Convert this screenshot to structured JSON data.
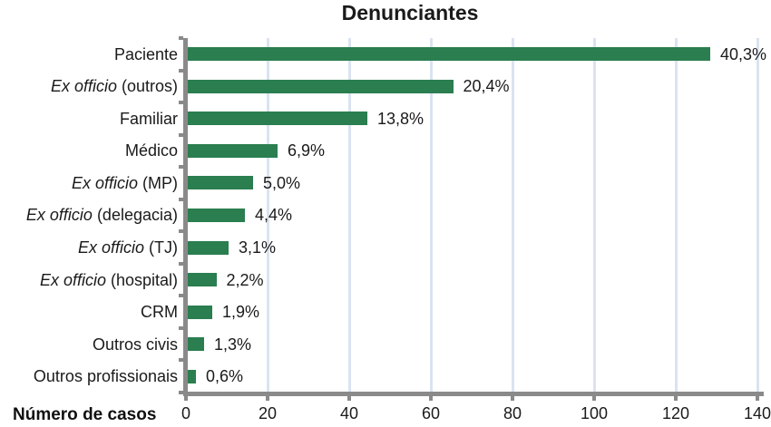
{
  "chart_data": {
    "type": "bar",
    "orientation": "horizontal",
    "title": "Denunciantes",
    "xlabel": "Número de casos",
    "xlim": [
      0,
      140
    ],
    "xticks": [
      0,
      20,
      40,
      60,
      80,
      100,
      120,
      140
    ],
    "grid": "vertical gridlines at each x tick, no top/right border",
    "bar_color": "#2a7e4f",
    "gridline_color": "#dae3f0",
    "axis_color": "#8a8a8a",
    "text_color": "#1a1a1a",
    "categories": [
      {
        "em": "",
        "text": "Paciente"
      },
      {
        "em": "Ex officio",
        "text": " (outros)"
      },
      {
        "em": "",
        "text": "Familiar"
      },
      {
        "em": "",
        "text": "Médico"
      },
      {
        "em": "Ex officio",
        "text": " (MP)"
      },
      {
        "em": "Ex officio",
        "text": " (delegacia)"
      },
      {
        "em": "Ex officio",
        "text": " (TJ)"
      },
      {
        "em": "Ex officio",
        "text": " (hospital)"
      },
      {
        "em": "",
        "text": "CRM"
      },
      {
        "em": "",
        "text": "Outros civis"
      },
      {
        "em": "",
        "text": "Outros profissionais"
      }
    ],
    "values": [
      128,
      65,
      44,
      22,
      16,
      14,
      10,
      7,
      6,
      4,
      2
    ],
    "value_labels": [
      "40,3%",
      "20,4%",
      "13,8%",
      "6,9%",
      "5,0%",
      "4,4%",
      "3,1%",
      "2,2%",
      "1,9%",
      "1,3%",
      "0,6%"
    ]
  }
}
